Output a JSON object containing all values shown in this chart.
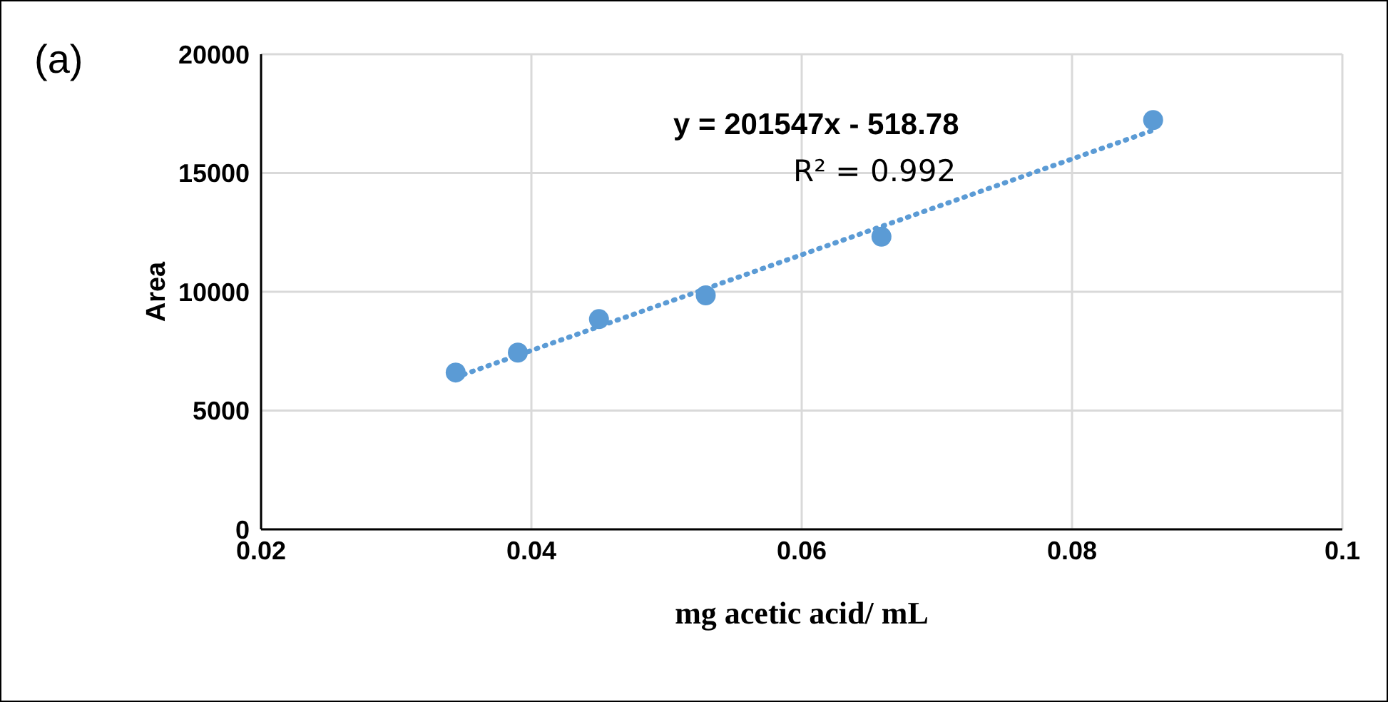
{
  "chart_data": {
    "type": "scatter",
    "xlabel": "mg acetic acid/ mL",
    "ylabel": "Area",
    "xlim": [
      0.02,
      0.1
    ],
    "xticks": [
      0.02,
      0.04,
      0.06,
      0.08,
      0.1
    ],
    "ylim": [
      0,
      20000
    ],
    "yticks": [
      0,
      5000,
      10000,
      15000,
      20000
    ],
    "grid": true,
    "legend": false,
    "marker": "circle",
    "series": [
      {
        "color": "#5b9bd5",
        "x": [
          0.0344,
          0.039,
          0.045,
          0.0529,
          0.0659,
          0.086
        ],
        "values": [
          6600,
          7440,
          8850,
          9850,
          12320,
          17230
        ]
      },
      {
        "type": "line",
        "color": "#5b9bd5",
        "line_style": "dotted",
        "marker": "none",
        "x": [
          0.0344,
          0.086
        ],
        "values": [
          6400,
          16800
        ]
      }
    ],
    "annotations": [
      "(a)",
      "y = 201547x - 518.78",
      "R² = 0.992"
    ]
  }
}
